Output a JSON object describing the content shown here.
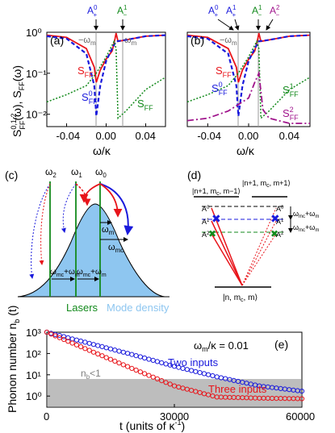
{
  "figure": {
    "panel_a": {
      "tag": "(a)",
      "ylabel": "S",
      "ylabel_sup": "0,1,2",
      "ylabel_sub": "FF",
      "ylabel_rest": "(ω), S",
      "ylabel_sub2": "FF",
      "ylabel_end": "(ω)",
      "xlabel": "ω/κ",
      "xticks": [
        "-0.04",
        "0.00",
        "0.04"
      ],
      "yticks": [
        "10⁰",
        "10⁻¹",
        "10⁻²"
      ],
      "markers": [
        {
          "label": "A",
          "sup": "0",
          "sub": "+"
        },
        {
          "label": "A",
          "sup": "1",
          "sub": "−"
        }
      ],
      "wm_left": "−ω",
      "wm_right": "ω",
      "wm_sub": "m",
      "curve_labels": [
        {
          "text": "S",
          "sub": "FF",
          "sup": "",
          "color": "#e8141a"
        },
        {
          "text": "S",
          "sub": "FF",
          "sup": "0",
          "color": "#1a1adc"
        },
        {
          "text": "S",
          "sub": "FF",
          "sup": "1",
          "color": "#138a1c"
        }
      ]
    },
    "panel_b": {
      "tag": "(b)",
      "xlabel": "ω/κ",
      "xticks": [
        "-0.04",
        "0.00",
        "0.04"
      ],
      "markers": [
        {
          "label": "A",
          "sup": "0",
          "sub": "+"
        },
        {
          "label": "A",
          "sup": "1",
          "sub": "+"
        },
        {
          "label": "A",
          "sup": "1",
          "sub": "−"
        },
        {
          "label": "A",
          "sup": "2",
          "sub": "−"
        }
      ],
      "curve_labels": [
        {
          "text": "S",
          "sub": "FF",
          "sup": "",
          "color": "#e8141a"
        },
        {
          "text": "S",
          "sub": "FF",
          "sup": "0",
          "color": "#1a1adc"
        },
        {
          "text": "S",
          "sub": "FF",
          "sup": "1",
          "color": "#138a1c"
        },
        {
          "text": "S",
          "sub": "FF",
          "sup": "2",
          "color": "#a0148c"
        }
      ]
    },
    "panel_c": {
      "tag": "(c)",
      "omegas": [
        {
          "t": "ω",
          "s": "2"
        },
        {
          "t": "ω",
          "s": "1"
        },
        {
          "t": "ω",
          "s": "0"
        }
      ],
      "wm_label": "ω",
      "wm_sub": "m",
      "wmc_label": "ω",
      "wmc_sub": "mc",
      "sum_label": "ω",
      "lasers": "Lasers",
      "mode_density": "Mode density"
    },
    "panel_d": {
      "tag": "(d)",
      "state_top_left": "|n+1, m",
      "state_top_right": "|n+1, m",
      "state_bottom": "|n, m",
      "levels": [
        "A",
        "A",
        "A",
        "A"
      ],
      "right_labels": [
        "A",
        "A",
        "A",
        "A"
      ]
    },
    "panel_e": {
      "tag": "(e)",
      "ylabel": "Phonon number n",
      "ylabel_sub": "b",
      "ylabel_end": " (t)",
      "xlabel": "t (units of κ",
      "xlabel_sup": "-1",
      "xlabel_end": ")",
      "xticks": [
        "0",
        "30000",
        "60000"
      ],
      "yticks": [
        "10³",
        "10²",
        "10¹",
        "10⁰"
      ],
      "param": "ω",
      "param_sub": "m",
      "param_rest": "/κ = 0.01",
      "two_inputs": "Two inputs",
      "three_inputs": "Three inputs",
      "nb_region": "n",
      "nb_sub": "b",
      "nb_rest": "<1",
      "colors": {
        "two": "#1a1adc",
        "three": "#e8141a",
        "region": "#bdbdbd"
      }
    }
  },
  "chart_data": [
    {
      "type": "line",
      "title": "",
      "xlabel": "ω/κ",
      "ylabel": "S_FF^{0,1,2}(ω), S_FF(ω)",
      "xlim": [
        -0.06,
        0.06
      ],
      "ylim": [
        0.005,
        1
      ],
      "yscale": "log",
      "series": [
        {
          "name": "S_FF",
          "x": [
            -0.06,
            -0.04,
            -0.02,
            -0.012,
            -0.01,
            -0.006,
            0.0,
            0.006,
            0.009,
            0.01,
            0.012,
            0.02,
            0.04,
            0.06
          ],
          "y": [
            0.85,
            0.75,
            0.4,
            0.14,
            0.06,
            0.12,
            0.22,
            0.35,
            0.7,
            0.95,
            0.6,
            0.65,
            0.8,
            0.85
          ]
        },
        {
          "name": "S_FF^0",
          "x": [
            -0.06,
            -0.04,
            -0.02,
            -0.012,
            -0.01,
            -0.006,
            0.0,
            0.006,
            0.01,
            0.02,
            0.04,
            0.06
          ],
          "y": [
            0.8,
            0.7,
            0.3,
            0.05,
            0.009,
            0.05,
            0.2,
            0.4,
            0.6,
            0.65,
            0.8,
            0.85
          ]
        },
        {
          "name": "S_FF^1",
          "x": [
            -0.06,
            -0.04,
            -0.02,
            -0.01,
            0.0,
            0.008,
            0.01,
            0.012,
            0.02,
            0.04,
            0.06
          ],
          "y": [
            0.02,
            0.03,
            0.05,
            0.1,
            0.25,
            0.6,
            0.4,
            0.008,
            0.012,
            0.04,
            0.08
          ]
        }
      ]
    },
    {
      "type": "line",
      "title": "",
      "xlabel": "ω/κ",
      "xlim": [
        -0.06,
        0.06
      ],
      "ylim": [
        0.005,
        1
      ],
      "yscale": "log",
      "series": [
        {
          "name": "S_FF",
          "x": [
            -0.06,
            -0.04,
            -0.02,
            -0.012,
            -0.01,
            -0.006,
            0.0,
            0.006,
            0.009,
            0.01,
            0.012,
            0.02,
            0.04,
            0.06
          ],
          "y": [
            0.85,
            0.75,
            0.4,
            0.14,
            0.06,
            0.12,
            0.22,
            0.35,
            0.7,
            0.95,
            0.6,
            0.65,
            0.8,
            0.85
          ]
        },
        {
          "name": "S_FF^0",
          "x": [
            -0.06,
            -0.04,
            -0.02,
            -0.012,
            -0.01,
            -0.006,
            0.0,
            0.006,
            0.01,
            0.02,
            0.04,
            0.06
          ],
          "y": [
            0.8,
            0.7,
            0.3,
            0.05,
            0.009,
            0.05,
            0.2,
            0.4,
            0.6,
            0.65,
            0.8,
            0.85
          ]
        },
        {
          "name": "S_FF^1",
          "x": [
            -0.06,
            -0.04,
            -0.02,
            -0.01,
            0.0,
            0.008,
            0.01,
            0.012,
            0.02,
            0.04,
            0.06
          ],
          "y": [
            0.02,
            0.03,
            0.05,
            0.1,
            0.25,
            0.6,
            0.4,
            0.008,
            0.012,
            0.04,
            0.08
          ]
        },
        {
          "name": "S_FF^2",
          "x": [
            -0.06,
            -0.04,
            -0.02,
            0.0,
            0.006,
            0.01,
            0.014,
            0.02,
            0.04,
            0.06
          ],
          "y": [
            0.007,
            0.008,
            0.012,
            0.025,
            0.06,
            0.1,
            0.013,
            0.008,
            0.006,
            0.006
          ]
        }
      ]
    },
    {
      "type": "scatter",
      "title": "",
      "xlabel": "t (units of κ^-1)",
      "ylabel": "Phonon number n_b(t)",
      "xlim": [
        0,
        60000
      ],
      "ylim": [
        0.3,
        1000
      ],
      "yscale": "log",
      "series": [
        {
          "name": "Two inputs",
          "x": [
            0,
            10000,
            20000,
            30000,
            40000,
            50000,
            60000
          ],
          "y": [
            1000,
            300,
            90,
            25,
            8,
            3,
            1.7
          ]
        },
        {
          "name": "Three inputs",
          "x": [
            0,
            10000,
            20000,
            30000,
            40000,
            50000,
            60000
          ],
          "y": [
            1000,
            140,
            20,
            3,
            0.9,
            0.8,
            0.75
          ]
        }
      ]
    }
  ]
}
